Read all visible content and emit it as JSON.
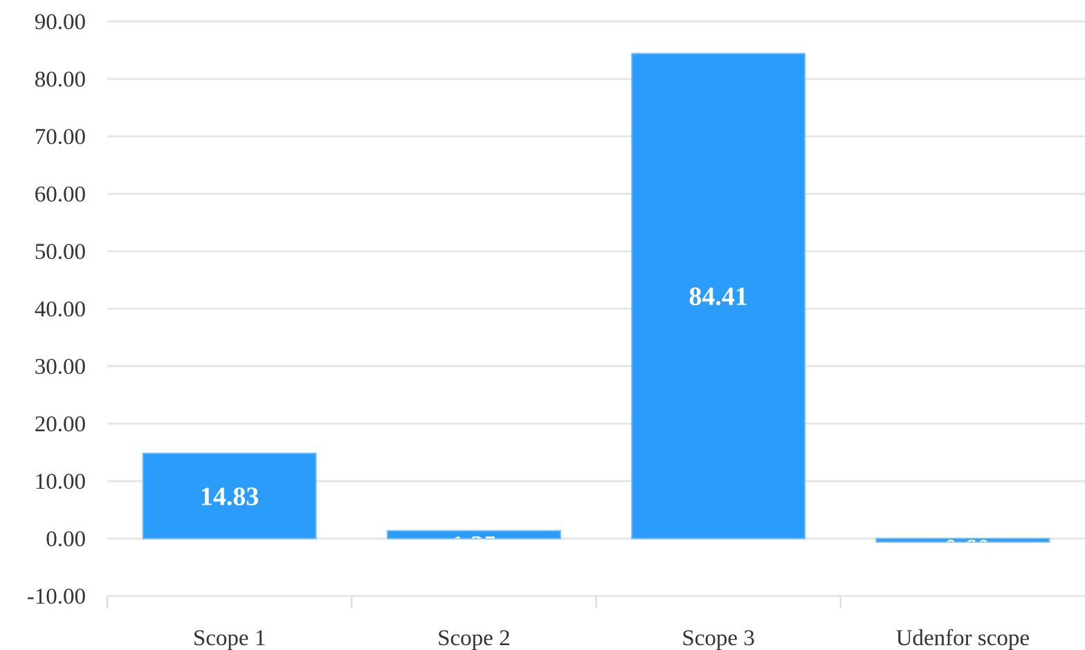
{
  "chart_data": {
    "type": "bar",
    "title": "",
    "xlabel": "",
    "ylabel": "",
    "categories": [
      "Scope 1",
      "Scope 2",
      "Scope 3",
      "Udenfor scope"
    ],
    "values": [
      14.83,
      1.35,
      84.41,
      -0.6
    ],
    "data_labels": [
      "14.83",
      "1.35",
      "84.41",
      "-0.60"
    ],
    "ylim": [
      -10,
      90
    ],
    "yticks": [
      90,
      80,
      70,
      60,
      50,
      40,
      30,
      20,
      10,
      0,
      -10
    ],
    "ytick_labels": [
      "90.00",
      "80.00",
      "70.00",
      "60.00",
      "50.00",
      "40.00",
      "30.00",
      "20.00",
      "10.00",
      "0.00",
      "-10.00"
    ],
    "grid": true,
    "legend": "none",
    "bar_color": "#2b9cfa"
  }
}
